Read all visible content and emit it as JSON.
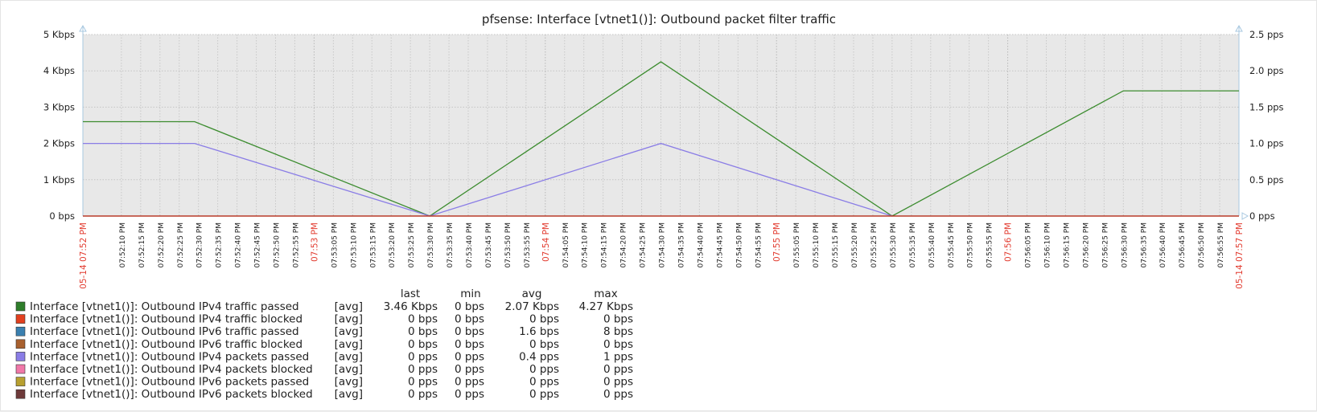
{
  "chart_data": {
    "type": "line",
    "title": "pfsense: Interface [vtnet1()]: Outbound packet filter traffic",
    "xlabel": "",
    "ylabel": "",
    "y_left": {
      "unit": "Kbps",
      "ylim": [
        0,
        5
      ],
      "ticks": [
        "0 bps",
        "1 Kbps",
        "2 Kbps",
        "3 Kbps",
        "4 Kbps",
        "5 Kbps"
      ]
    },
    "y_right": {
      "unit": "pps",
      "ylim": [
        0,
        2.5
      ],
      "ticks": [
        "0 pps",
        "0.5 pps",
        "1.0 pps",
        "1.5 pps",
        "2.0 pps",
        "2.5 pps"
      ]
    },
    "x_start_sec": 0,
    "x_end_sec": 300,
    "x_ticks": [
      "05-14 07:52 PM",
      "07:52:10 PM",
      "07:52:15 PM",
      "07:52:20 PM",
      "07:52:25 PM",
      "07:52:30 PM",
      "07:52:35 PM",
      "07:52:40 PM",
      "07:52:45 PM",
      "07:52:50 PM",
      "07:52:55 PM",
      "07:53 PM",
      "07:53:05 PM",
      "07:53:10 PM",
      "07:53:15 PM",
      "07:53:20 PM",
      "07:53:25 PM",
      "07:53:30 PM",
      "07:53:35 PM",
      "07:53:40 PM",
      "07:53:45 PM",
      "07:53:50 PM",
      "07:53:55 PM",
      "07:54 PM",
      "07:54:05 PM",
      "07:54:10 PM",
      "07:54:15 PM",
      "07:54:20 PM",
      "07:54:25 PM",
      "07:54:30 PM",
      "07:54:35 PM",
      "07:54:40 PM",
      "07:54:45 PM",
      "07:54:50 PM",
      "07:54:55 PM",
      "07:55 PM",
      "07:55:05 PM",
      "07:55:10 PM",
      "07:55:15 PM",
      "07:55:20 PM",
      "07:55:25 PM",
      "07:55:30 PM",
      "07:55:35 PM",
      "07:55:40 PM",
      "07:55:45 PM",
      "07:55:50 PM",
      "07:55:55 PM",
      "07:56 PM",
      "07:56:05 PM",
      "07:56:10 PM",
      "07:56:15 PM",
      "07:56:20 PM",
      "07:56:25 PM",
      "07:56:30 PM",
      "07:56:35 PM",
      "07:56:40 PM",
      "07:56:45 PM",
      "07:56:50 PM",
      "07:56:55 PM",
      "05-14 07:57 PM"
    ],
    "x_tick_secs": [
      0,
      10,
      15,
      20,
      25,
      30,
      35,
      40,
      45,
      50,
      55,
      60,
      65,
      70,
      75,
      80,
      85,
      90,
      95,
      100,
      105,
      110,
      115,
      120,
      125,
      130,
      135,
      140,
      145,
      150,
      155,
      160,
      165,
      170,
      175,
      180,
      185,
      190,
      195,
      200,
      205,
      210,
      215,
      220,
      225,
      230,
      235,
      240,
      245,
      250,
      255,
      260,
      265,
      270,
      275,
      280,
      285,
      290,
      295,
      300
    ],
    "major_tick_secs": [
      0,
      60,
      120,
      180,
      240,
      300
    ],
    "grid": true,
    "series": [
      {
        "name": "Interface [vtnet1()]: Outbound IPv4 traffic passed",
        "color": "#3c8c2f",
        "axis": "left",
        "x": [
          0,
          29,
          90,
          150,
          210,
          270,
          300
        ],
        "y": [
          2.6,
          2.6,
          0,
          4.25,
          0,
          3.45,
          3.45
        ]
      },
      {
        "name": "Interface [vtnet1()]: Outbound IPv4 packets passed",
        "color": "#8a7de6",
        "axis": "right",
        "x": [
          0,
          29,
          90,
          150,
          210
        ],
        "y": [
          1.0,
          1.0,
          0,
          1.0,
          0
        ]
      },
      {
        "name": "Interface [vtnet1()]: Outbound IPv4 traffic blocked",
        "color": "#e2401f",
        "axis": "left",
        "x": [
          0,
          300
        ],
        "y": [
          0,
          0
        ]
      }
    ],
    "legend_header": {
      "last": "last",
      "min": "min",
      "avg": "avg",
      "max": "max"
    },
    "legend": [
      {
        "label": "Interface [vtnet1()]: Outbound IPv4 traffic passed",
        "func": "[avg]",
        "last": "3.46 Kbps",
        "min": "0 bps",
        "avg": "2.07 Kbps",
        "max": "4.27 Kbps",
        "color": "#2e7d2a"
      },
      {
        "label": "Interface [vtnet1()]: Outbound IPv4 traffic blocked",
        "func": "[avg]",
        "last": "0 bps",
        "min": "0 bps",
        "avg": "0 bps",
        "max": "0 bps",
        "color": "#e2401f"
      },
      {
        "label": "Interface [vtnet1()]: Outbound IPv6 traffic passed",
        "func": "[avg]",
        "last": "0 bps",
        "min": "0 bps",
        "avg": "1.6 bps",
        "max": "8 bps",
        "color": "#3a80b0"
      },
      {
        "label": "Interface [vtnet1()]: Outbound IPv6 traffic blocked",
        "func": "[avg]",
        "last": "0 bps",
        "min": "0 bps",
        "avg": "0 bps",
        "max": "0 bps",
        "color": "#a8602e"
      },
      {
        "label": "Interface [vtnet1()]: Outbound IPv4 packets passed",
        "func": "[avg]",
        "last": "0 pps",
        "min": "0 pps",
        "avg": "0.4 pps",
        "max": "1 pps",
        "color": "#8a7de6"
      },
      {
        "label": "Interface [vtnet1()]: Outbound IPv4 packets blocked",
        "func": "[avg]",
        "last": "0 pps",
        "min": "0 pps",
        "avg": "0 pps",
        "max": "0 pps",
        "color": "#f078a8"
      },
      {
        "label": "Interface [vtnet1()]: Outbound IPv6 packets passed",
        "func": "[avg]",
        "last": "0 pps",
        "min": "0 pps",
        "avg": "0 pps",
        "max": "0 pps",
        "color": "#b8a030"
      },
      {
        "label": "Interface [vtnet1()]: Outbound IPv6 packets blocked",
        "func": "[avg]",
        "last": "0 pps",
        "min": "0 pps",
        "avg": "0 pps",
        "max": "0 pps",
        "color": "#6e3a3a"
      }
    ]
  }
}
